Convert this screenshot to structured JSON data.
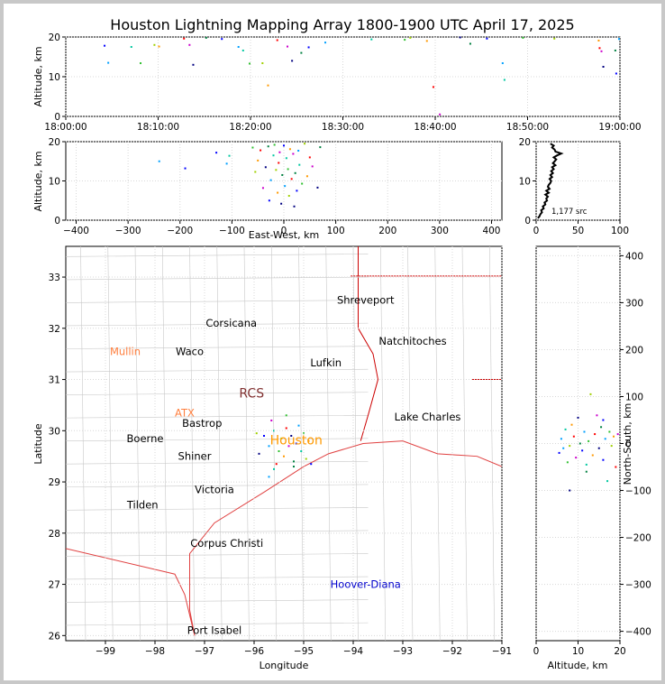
{
  "title": "Houston Lightning Mapping Array 1800-1900 UTC April 17, 2025",
  "colors": {
    "axis": "#000000",
    "county_lines": "#c8c8c8",
    "state_lines": "#cc0000",
    "coast": "#e04040",
    "grid": "#d8d8d8"
  },
  "chart_data": [
    {
      "id": "time-altitude",
      "type": "scatter",
      "xlabel": "",
      "ylabel": "Altitude, km",
      "xlim_minutes": [
        0,
        60
      ],
      "ylim": [
        0,
        20
      ],
      "xticks": [
        "18:00:00",
        "18:10:00",
        "18:20:00",
        "18:30:00",
        "18:40:00",
        "18:50:00",
        "19:00:00"
      ],
      "yticks": [
        0,
        10,
        20
      ],
      "points": [
        [
          4.2,
          17.8
        ],
        [
          4.6,
          13.5
        ],
        [
          7.1,
          17.5
        ],
        [
          8.1,
          13.4
        ],
        [
          9.6,
          18.0
        ],
        [
          10.1,
          17.6
        ],
        [
          12.8,
          19.6
        ],
        [
          13.4,
          18.0
        ],
        [
          13.8,
          13.0
        ],
        [
          15.2,
          19.8
        ],
        [
          16.9,
          19.5
        ],
        [
          18.7,
          17.5
        ],
        [
          19.2,
          16.6
        ],
        [
          19.9,
          13.3
        ],
        [
          21.3,
          13.4
        ],
        [
          21.9,
          7.8
        ],
        [
          22.9,
          19.2
        ],
        [
          24.0,
          17.6
        ],
        [
          24.5,
          14.0
        ],
        [
          25.5,
          16.0
        ],
        [
          26.3,
          17.4
        ],
        [
          28.1,
          18.6
        ],
        [
          33.1,
          19.4
        ],
        [
          36.7,
          19.3
        ],
        [
          37.3,
          19.8
        ],
        [
          39.1,
          19.0
        ],
        [
          39.8,
          7.4
        ],
        [
          40.5,
          0.5
        ],
        [
          42.7,
          19.9
        ],
        [
          43.8,
          18.3
        ],
        [
          45.6,
          19.6
        ],
        [
          47.3,
          13.4
        ],
        [
          47.5,
          9.2
        ],
        [
          49.5,
          19.8
        ],
        [
          52.9,
          19.6
        ],
        [
          57.7,
          19.1
        ],
        [
          57.8,
          17.2
        ],
        [
          58.0,
          16.4
        ],
        [
          58.2,
          12.5
        ],
        [
          59.5,
          16.6
        ],
        [
          59.6,
          10.8
        ],
        [
          59.9,
          19.5
        ]
      ]
    },
    {
      "id": "east-west-altitude",
      "type": "scatter",
      "xlabel": "East-West, km",
      "ylabel": "Altitude, km",
      "xlim": [
        -420,
        420
      ],
      "ylim": [
        0,
        20
      ],
      "xticks": [
        -400,
        -300,
        -200,
        -100,
        0,
        100,
        200,
        300,
        400
      ],
      "yticks": [
        0,
        10,
        20
      ],
      "points": [
        [
          -130,
          17.2
        ],
        [
          -110,
          14.4
        ],
        [
          -105,
          16.4
        ],
        [
          -60,
          18.5
        ],
        [
          -55,
          12.3
        ],
        [
          -50,
          15.2
        ],
        [
          -45,
          17.8
        ],
        [
          -40,
          8.2
        ],
        [
          -35,
          13.5
        ],
        [
          -30,
          18.8
        ],
        [
          -28,
          5.0
        ],
        [
          -25,
          10.2
        ],
        [
          -20,
          16.5
        ],
        [
          -18,
          19.2
        ],
        [
          -15,
          12.8
        ],
        [
          -12,
          7.0
        ],
        [
          -10,
          14.6
        ],
        [
          -8,
          17.3
        ],
        [
          -5,
          4.2
        ],
        [
          -3,
          11.5
        ],
        [
          0,
          19.0
        ],
        [
          2,
          8.7
        ],
        [
          5,
          15.8
        ],
        [
          8,
          13.0
        ],
        [
          10,
          6.2
        ],
        [
          12,
          18.1
        ],
        [
          15,
          10.5
        ],
        [
          18,
          16.9
        ],
        [
          20,
          3.5
        ],
        [
          22,
          12.0
        ],
        [
          25,
          7.5
        ],
        [
          28,
          17.7
        ],
        [
          30,
          14.1
        ],
        [
          35,
          9.3
        ],
        [
          40,
          19.5
        ],
        [
          45,
          11.2
        ],
        [
          50,
          16.0
        ],
        [
          55,
          13.7
        ],
        [
          65,
          8.3
        ],
        [
          70,
          18.6
        ],
        [
          -190,
          13.2
        ],
        [
          -240,
          15.0
        ]
      ],
      "histogram": {
        "xlabel": "",
        "xlim": [
          0,
          100
        ],
        "ylim": [
          0,
          20
        ],
        "xticks": [
          0,
          50,
          100
        ],
        "yticks": [
          0,
          10,
          20
        ],
        "label": "1,177 src",
        "profile": [
          [
            0.5,
            2
          ],
          [
            1,
            4
          ],
          [
            1.5,
            5
          ],
          [
            2,
            7
          ],
          [
            2.5,
            6
          ],
          [
            3,
            9
          ],
          [
            3.5,
            8
          ],
          [
            4,
            11
          ],
          [
            4.5,
            10
          ],
          [
            5,
            13
          ],
          [
            5.5,
            12
          ],
          [
            6,
            14
          ],
          [
            6.5,
            11
          ],
          [
            7,
            15
          ],
          [
            7.5,
            12
          ],
          [
            8,
            16
          ],
          [
            8.5,
            14
          ],
          [
            9,
            15
          ],
          [
            9.5,
            17
          ],
          [
            10,
            18
          ],
          [
            10.5,
            16
          ],
          [
            11,
            19
          ],
          [
            11.5,
            17
          ],
          [
            12,
            20
          ],
          [
            12.5,
            18
          ],
          [
            13,
            21
          ],
          [
            13.5,
            19
          ],
          [
            14,
            23
          ],
          [
            14.5,
            20
          ],
          [
            15,
            22
          ],
          [
            15.5,
            24
          ],
          [
            16,
            21
          ],
          [
            16.5,
            25
          ],
          [
            17,
            30
          ],
          [
            17.5,
            23
          ],
          [
            18,
            22
          ],
          [
            18.5,
            19
          ],
          [
            19,
            21
          ],
          [
            19.5,
            17
          ]
        ]
      }
    },
    {
      "id": "plan-view-map",
      "type": "scatter",
      "xlabel": "Longitude",
      "ylabel": "Latitude",
      "xlim": [
        -99.8,
        -91.0
      ],
      "ylim": [
        25.9,
        33.6
      ],
      "xticks": [
        -99,
        -98,
        -97,
        -96,
        -95,
        -94,
        -93,
        -92,
        -91
      ],
      "yticks": [
        26,
        27,
        28,
        29,
        30,
        31,
        32,
        33
      ],
      "points": [
        [
          -95.8,
          29.9
        ],
        [
          -95.7,
          29.7
        ],
        [
          -95.6,
          30.0
        ],
        [
          -95.5,
          29.6
        ],
        [
          -95.45,
          29.85
        ],
        [
          -95.4,
          29.5
        ],
        [
          -95.35,
          30.05
        ],
        [
          -95.3,
          29.7
        ],
        [
          -95.25,
          29.9
        ],
        [
          -95.2,
          29.4
        ],
        [
          -95.15,
          29.75
        ],
        [
          -95.1,
          30.1
        ],
        [
          -95.05,
          29.6
        ],
        [
          -95.0,
          29.95
        ],
        [
          -94.95,
          29.45
        ],
        [
          -94.9,
          29.8
        ],
        [
          -95.55,
          29.35
        ],
        [
          -95.65,
          30.2
        ],
        [
          -95.9,
          29.55
        ],
        [
          -95.2,
          29.3
        ],
        [
          -94.85,
          29.35
        ],
        [
          -95.7,
          29.1
        ],
        [
          -95.6,
          29.25
        ],
        [
          -95.35,
          30.3
        ],
        [
          -95.95,
          29.95
        ]
      ],
      "cities": [
        {
          "name": "Shreveport",
          "lon": -93.75,
          "lat": 32.55,
          "color": "#000000"
        },
        {
          "name": "Corsicana",
          "lon": -96.46,
          "lat": 32.1,
          "color": "#000000"
        },
        {
          "name": "Natchitoches",
          "lon": -92.8,
          "lat": 31.75,
          "color": "#000000"
        },
        {
          "name": "Mullin",
          "lon": -98.6,
          "lat": 31.55,
          "color": "#ff8040"
        },
        {
          "name": "Waco",
          "lon": -97.3,
          "lat": 31.55,
          "color": "#000000"
        },
        {
          "name": "Lufkin",
          "lon": -94.55,
          "lat": 31.33,
          "color": "#000000"
        },
        {
          "name": "RCS",
          "lon": -96.05,
          "lat": 30.72,
          "color": "#803030"
        },
        {
          "name": "ATX",
          "lon": -97.4,
          "lat": 30.35,
          "color": "#ff8040"
        },
        {
          "name": "Bastrop",
          "lon": -97.05,
          "lat": 30.15,
          "color": "#000000"
        },
        {
          "name": "Lake Charles",
          "lon": -92.5,
          "lat": 30.27,
          "color": "#000000"
        },
        {
          "name": "Boerne",
          "lon": -98.2,
          "lat": 29.85,
          "color": "#000000"
        },
        {
          "name": "Houston",
          "lon": -95.15,
          "lat": 29.8,
          "color": "#ff9900"
        },
        {
          "name": "Shiner",
          "lon": -97.2,
          "lat": 29.5,
          "color": "#000000"
        },
        {
          "name": "Victoria",
          "lon": -96.8,
          "lat": 28.85,
          "color": "#000000"
        },
        {
          "name": "Tilden",
          "lon": -98.25,
          "lat": 28.55,
          "color": "#000000"
        },
        {
          "name": "Corpus Christi",
          "lon": -96.55,
          "lat": 27.8,
          "color": "#000000"
        },
        {
          "name": "Hoover-Diana",
          "lon": -93.75,
          "lat": 27.0,
          "color": "#0000cc"
        },
        {
          "name": "Port Isabel",
          "lon": -96.8,
          "lat": 26.1,
          "color": "#000000"
        }
      ]
    },
    {
      "id": "altitude-north-south",
      "type": "scatter",
      "xlabel": "Altitude, km",
      "ylabel": "North-South, km",
      "xlim": [
        0,
        20
      ],
      "ylim": [
        -420,
        420
      ],
      "xticks": [
        0,
        10,
        20
      ],
      "yticks": [
        -400,
        -300,
        -200,
        -100,
        0,
        100,
        200,
        300,
        400
      ],
      "points": [
        [
          5.5,
          -20
        ],
        [
          6.0,
          10
        ],
        [
          7.0,
          30
        ],
        [
          7.5,
          -40
        ],
        [
          8.0,
          -5
        ],
        [
          8.5,
          40
        ],
        [
          9.0,
          15
        ],
        [
          9.5,
          -30
        ],
        [
          10.0,
          55
        ],
        [
          10.5,
          0
        ],
        [
          11.0,
          -15
        ],
        [
          11.5,
          25
        ],
        [
          12.0,
          -45
        ],
        [
          12.5,
          5
        ],
        [
          13.0,
          105
        ],
        [
          13.5,
          -25
        ],
        [
          14.0,
          20
        ],
        [
          14.5,
          60
        ],
        [
          15.0,
          -10
        ],
        [
          15.5,
          35
        ],
        [
          16.0,
          -35
        ],
        [
          16.5,
          10
        ],
        [
          17.0,
          -80
        ],
        [
          17.5,
          25
        ],
        [
          18.0,
          -5
        ],
        [
          18.5,
          15
        ],
        [
          19.0,
          -50
        ],
        [
          19.5,
          20
        ],
        [
          8.0,
          -100
        ],
        [
          12.0,
          -60
        ],
        [
          16.0,
          50
        ],
        [
          6.5,
          -10
        ]
      ]
    }
  ]
}
